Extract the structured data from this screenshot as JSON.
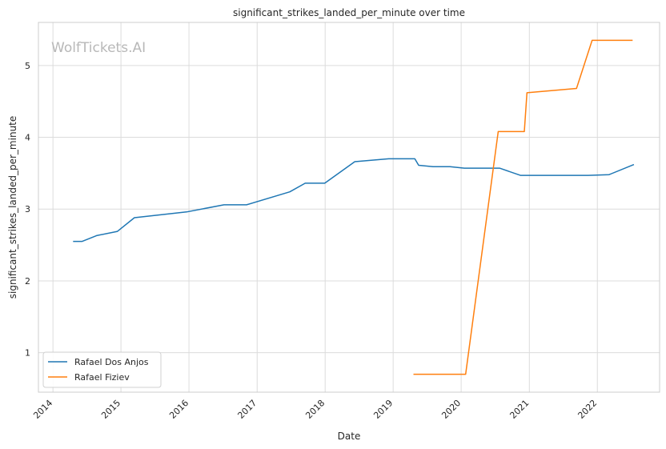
{
  "chart_data": {
    "type": "line",
    "title": "significant_strikes_landed_per_minute over time",
    "xlabel": "Date",
    "ylabel": "significant_strikes_landed_per_minute",
    "watermark": "WolfTickets.AI",
    "x_ticks": [
      "2014",
      "2015",
      "2016",
      "2017",
      "2018",
      "2019",
      "2020",
      "2021",
      "2022"
    ],
    "y_ticks": [
      "1",
      "2",
      "3",
      "4",
      "5"
    ],
    "xlim": [
      "2013-10-15",
      "2022-12-01"
    ],
    "ylim": [
      0.45,
      5.6
    ],
    "grid": true,
    "legend_position": "lower-left",
    "series": [
      {
        "name": "Rafael Dos Anjos",
        "color": "#1f77b4",
        "points": [
          [
            "2014-04-19",
            2.55
          ],
          [
            "2014-06-07",
            2.55
          ],
          [
            "2014-08-23",
            2.63
          ],
          [
            "2014-12-13",
            2.69
          ],
          [
            "2015-03-14",
            2.88
          ],
          [
            "2015-12-19",
            2.96
          ],
          [
            "2016-07-07",
            3.06
          ],
          [
            "2016-11-05",
            3.06
          ],
          [
            "2017-06-25",
            3.24
          ],
          [
            "2017-09-16",
            3.36
          ],
          [
            "2017-12-30",
            3.36
          ],
          [
            "2018-06-09",
            3.66
          ],
          [
            "2018-12-08",
            3.7
          ],
          [
            "2019-04-27",
            3.7
          ],
          [
            "2019-05-18",
            3.61
          ],
          [
            "2019-08-03",
            3.59
          ],
          [
            "2019-11-02",
            3.59
          ],
          [
            "2020-01-18",
            3.57
          ],
          [
            "2020-07-25",
            3.57
          ],
          [
            "2020-11-14",
            3.47
          ],
          [
            "2021-11-13",
            3.47
          ],
          [
            "2022-03-05",
            3.48
          ],
          [
            "2022-07-16",
            3.62
          ]
        ]
      },
      {
        "name": "Rafael Fiziev",
        "color": "#ff7f0e",
        "points": [
          [
            "2019-04-20",
            0.7
          ],
          [
            "2019-06-01",
            0.7
          ],
          [
            "2020-01-25",
            0.7
          ],
          [
            "2020-07-18",
            4.08
          ],
          [
            "2020-12-05",
            4.08
          ],
          [
            "2020-12-19",
            4.62
          ],
          [
            "2021-09-11",
            4.68
          ],
          [
            "2021-12-04",
            5.35
          ],
          [
            "2022-07-09",
            5.35
          ]
        ]
      }
    ]
  }
}
